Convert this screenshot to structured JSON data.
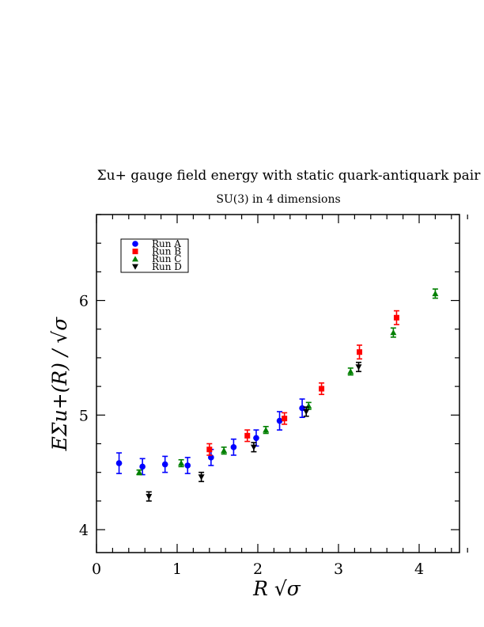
{
  "chart_data": {
    "type": "scatter",
    "title": "Σu+ gauge field energy with static quark-antiquark pair",
    "subtitle": "SU(3) in 4 dimensions",
    "xlabel": "R √σ",
    "ylabel": "EΣu+(R) / √σ",
    "xlim": [
      0,
      4.5
    ],
    "ylim": [
      3.8,
      6.75
    ],
    "x_ticks": [
      0,
      1,
      2,
      3,
      4
    ],
    "y_ticks": [
      4,
      5,
      6
    ],
    "legend_position": "top-left",
    "series": [
      {
        "name": "Run A",
        "color": "#0000ff",
        "marker": "circle",
        "points": [
          {
            "x": 0.28,
            "y": 4.58,
            "err": 0.09
          },
          {
            "x": 0.57,
            "y": 4.55,
            "err": 0.07
          },
          {
            "x": 0.85,
            "y": 4.57,
            "err": 0.07
          },
          {
            "x": 1.13,
            "y": 4.56,
            "err": 0.07
          },
          {
            "x": 1.42,
            "y": 4.63,
            "err": 0.07
          },
          {
            "x": 1.7,
            "y": 4.72,
            "err": 0.07
          },
          {
            "x": 1.98,
            "y": 4.8,
            "err": 0.07
          },
          {
            "x": 2.27,
            "y": 4.95,
            "err": 0.08
          },
          {
            "x": 2.55,
            "y": 5.06,
            "err": 0.08
          }
        ]
      },
      {
        "name": "Run B",
        "color": "#ff0000",
        "marker": "square",
        "points": [
          {
            "x": 1.4,
            "y": 4.7,
            "err": 0.05
          },
          {
            "x": 1.87,
            "y": 4.82,
            "err": 0.05
          },
          {
            "x": 2.33,
            "y": 4.97,
            "err": 0.05
          },
          {
            "x": 2.79,
            "y": 5.23,
            "err": 0.05
          },
          {
            "x": 3.26,
            "y": 5.55,
            "err": 0.06
          },
          {
            "x": 3.72,
            "y": 5.85,
            "err": 0.06
          }
        ]
      },
      {
        "name": "Run C",
        "color": "#008000",
        "marker": "triangle-up",
        "points": [
          {
            "x": 0.53,
            "y": 4.5,
            "err": 0.02
          },
          {
            "x": 1.05,
            "y": 4.58,
            "err": 0.03
          },
          {
            "x": 1.58,
            "y": 4.69,
            "err": 0.03
          },
          {
            "x": 2.1,
            "y": 4.87,
            "err": 0.03
          },
          {
            "x": 2.63,
            "y": 5.08,
            "err": 0.03
          },
          {
            "x": 3.15,
            "y": 5.38,
            "err": 0.03
          },
          {
            "x": 3.68,
            "y": 5.72,
            "err": 0.04
          },
          {
            "x": 4.2,
            "y": 6.06,
            "err": 0.04
          }
        ]
      },
      {
        "name": "Run D",
        "color": "#000000",
        "marker": "triangle-down",
        "points": [
          {
            "x": 0.65,
            "y": 4.29,
            "err": 0.04
          },
          {
            "x": 1.3,
            "y": 4.46,
            "err": 0.04
          },
          {
            "x": 1.95,
            "y": 4.72,
            "err": 0.04
          },
          {
            "x": 2.6,
            "y": 5.03,
            "err": 0.04
          },
          {
            "x": 3.25,
            "y": 5.42,
            "err": 0.04
          }
        ]
      }
    ]
  }
}
